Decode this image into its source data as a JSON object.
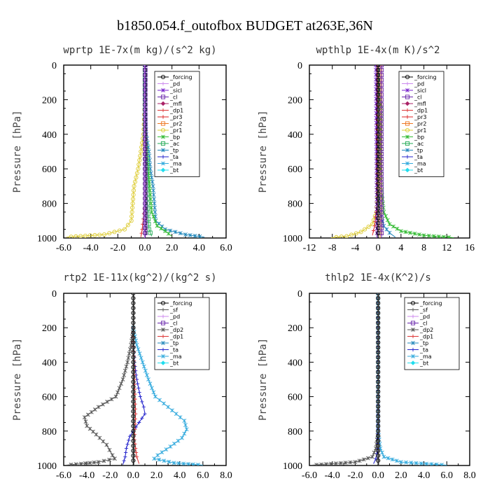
{
  "title": "b1850.054.f_outofbox  BUDGET at263E,36N",
  "colors": {
    "forcing": "#000000",
    "pd": "#cc88ee",
    "sicl": "#7722cc",
    "cl": "#6622aa",
    "mfl": "#aa2266",
    "dp1": "#dd3333",
    "pr3": "#dd2222",
    "pr2": "#ee7722",
    "pr1": "#ddcc33",
    "bp": "#33bb33",
    "ac": "#22aa55",
    "tp": "#2288bb",
    "ta": "#2222cc",
    "ma": "#33aadd",
    "bt": "#22ddee"
  },
  "chart_data": [
    {
      "type": "line",
      "title": "wprtp  1E-7x(m kg)/(s^2 kg)",
      "ylabel": "Pressure [hPa]",
      "xlim": [
        -6,
        6
      ],
      "ylim": [
        1000,
        0
      ],
      "xticks": [
        "-6.0",
        "-4.0",
        "-2.0",
        "0.0",
        "2.0",
        "4.0",
        "6.0"
      ],
      "xtick_values": [
        -6,
        -4,
        -2,
        0,
        2,
        4,
        6
      ],
      "yticks": [
        "0",
        "200",
        "400",
        "600",
        "800",
        "1000"
      ],
      "ytick_values": [
        0,
        200,
        400,
        600,
        800,
        1000
      ],
      "legend": [
        "_forcing",
        "_pd",
        "_sicl",
        "_cl",
        "_mfl",
        "_dp1",
        "_pr3",
        "_pr2",
        "_pr1",
        "_bp",
        "_ac",
        "_tp",
        "_ta",
        "_ma",
        "_bt"
      ],
      "legend_keys": [
        "forcing",
        "pd",
        "sicl",
        "cl",
        "mfl",
        "dp1",
        "pr3",
        "pr2",
        "pr1",
        "bp",
        "ac",
        "tp",
        "ta",
        "ma",
        "bt"
      ],
      "series": [
        {
          "key": "pr1",
          "points": [
            [
              0,
              0
            ],
            [
              0,
              200
            ],
            [
              -0.1,
              400
            ],
            [
              -0.3,
              500
            ],
            [
              -0.5,
              600
            ],
            [
              -0.8,
              700
            ],
            [
              -0.9,
              800
            ],
            [
              -1.0,
              900
            ],
            [
              -1.5,
              950
            ],
            [
              -3.0,
              980
            ],
            [
              -5.8,
              995
            ]
          ]
        },
        {
          "key": "tp",
          "points": [
            [
              0,
              0
            ],
            [
              0,
              200
            ],
            [
              0.1,
              400
            ],
            [
              0.3,
              500
            ],
            [
              0.4,
              600
            ],
            [
              0.6,
              700
            ],
            [
              0.7,
              800
            ],
            [
              0.8,
              900
            ],
            [
              1.5,
              950
            ],
            [
              3.0,
              980
            ],
            [
              4.4,
              995
            ]
          ]
        },
        {
          "key": "bp",
          "points": [
            [
              0,
              0
            ],
            [
              0,
              300
            ],
            [
              0.1,
              450
            ],
            [
              0.2,
              550
            ],
            [
              0.3,
              650
            ],
            [
              0.4,
              750
            ],
            [
              0.5,
              850
            ],
            [
              0.9,
              930
            ],
            [
              1.5,
              960
            ],
            [
              2.0,
              990
            ]
          ]
        },
        {
          "key": "ac",
          "points": [
            [
              0,
              0
            ],
            [
              0,
              400
            ],
            [
              0.1,
              600
            ],
            [
              0.2,
              800
            ],
            [
              0.3,
              950
            ],
            [
              0.5,
              990
            ]
          ]
        },
        {
          "key": "dp1",
          "points": [
            [
              0,
              0
            ],
            [
              0,
              800
            ],
            [
              -0.2,
              950
            ],
            [
              -0.3,
              995
            ]
          ]
        },
        {
          "key": "forcing",
          "points": [
            [
              0,
              0
            ],
            [
              0,
              1000
            ]
          ]
        },
        {
          "key": "pd",
          "points": [
            [
              -0.03,
              0
            ],
            [
              -0.03,
              1000
            ]
          ]
        },
        {
          "key": "cl",
          "points": [
            [
              0.03,
              0
            ],
            [
              0.03,
              1000
            ]
          ]
        }
      ]
    },
    {
      "type": "line",
      "title": "wpthlp  1E-4x(m K)/s^2",
      "ylabel": "Pressure [hPa]",
      "xlim": [
        -12,
        16
      ],
      "ylim": [
        1000,
        0
      ],
      "xticks": [
        "-12",
        "-8",
        "-4",
        "0",
        "4",
        "8",
        "12",
        "16"
      ],
      "xtick_values": [
        -12,
        -8,
        -4,
        0,
        4,
        8,
        12,
        16
      ],
      "yticks": [
        "0",
        "200",
        "400",
        "600",
        "800",
        "1000"
      ],
      "ytick_values": [
        0,
        200,
        400,
        600,
        800,
        1000
      ],
      "legend": [
        "_forcing",
        "_pd",
        "_sicl",
        "_cl",
        "_mfl",
        "_dp1",
        "_pr3",
        "_pr2",
        "_pr1",
        "_bp",
        "_ac",
        "_tp",
        "_ta",
        "_ma",
        "_bt"
      ],
      "legend_keys": [
        "forcing",
        "pd",
        "sicl",
        "cl",
        "mfl",
        "dp1",
        "pr3",
        "pr2",
        "pr1",
        "bp",
        "ac",
        "tp",
        "ta",
        "ma",
        "bt"
      ],
      "series": [
        {
          "key": "bp",
          "points": [
            [
              0,
              0
            ],
            [
              0.3,
              200
            ],
            [
              0.6,
              250
            ],
            [
              0.5,
              400
            ],
            [
              0.5,
              600
            ],
            [
              0.7,
              750
            ],
            [
              1.0,
              850
            ],
            [
              2.0,
              920
            ],
            [
              4.0,
              960
            ],
            [
              8.0,
              985
            ],
            [
              13.2,
              998
            ]
          ]
        },
        {
          "key": "pr1",
          "points": [
            [
              0,
              0
            ],
            [
              0,
              700
            ],
            [
              -0.3,
              850
            ],
            [
              -1.0,
              920
            ],
            [
              -3.0,
              965
            ],
            [
              -5.5,
              990
            ],
            [
              -8.2,
              998
            ]
          ]
        },
        {
          "key": "tp",
          "points": [
            [
              0,
              0
            ],
            [
              0,
              700
            ],
            [
              0.3,
              850
            ],
            [
              1.0,
              930
            ],
            [
              2.0,
              970
            ],
            [
              3.0,
              995
            ]
          ]
        },
        {
          "key": "dp1",
          "points": [
            [
              -0.2,
              0
            ],
            [
              -0.2,
              800
            ],
            [
              -0.6,
              930
            ],
            [
              -1.0,
              985
            ]
          ]
        },
        {
          "key": "sicl",
          "points": [
            [
              -0.4,
              0
            ],
            [
              -0.3,
              500
            ],
            [
              -0.2,
              1000
            ]
          ]
        },
        {
          "key": "pr2",
          "points": [
            [
              0.35,
              0
            ],
            [
              0.35,
              1000
            ]
          ]
        },
        {
          "key": "cl",
          "points": [
            [
              0.6,
              0
            ],
            [
              0.6,
              1000
            ]
          ]
        },
        {
          "key": "forcing",
          "points": [
            [
              0,
              0
            ],
            [
              0,
              1000
            ]
          ]
        }
      ]
    },
    {
      "type": "line",
      "title": "rtp2  1E-11x(kg^2)/(kg^2 s)",
      "ylabel": "Pressure [hPa]",
      "xlim": [
        -6,
        8
      ],
      "ylim": [
        1000,
        0
      ],
      "xticks": [
        "-6.0",
        "-4.0",
        "-2.0",
        "0.0",
        "2.0",
        "4.0",
        "6.0",
        "8.0"
      ],
      "xtick_values": [
        -6,
        -4,
        -2,
        0,
        2,
        4,
        6,
        8
      ],
      "yticks": [
        "0",
        "200",
        "400",
        "600",
        "800",
        "1000"
      ],
      "ytick_values": [
        0,
        200,
        400,
        600,
        800,
        1000
      ],
      "legend": [
        "_forcing",
        "_sf",
        "_pd",
        "_cl",
        "_dp2",
        "_dp1",
        "_tp",
        "_ta",
        "_ma",
        "_bt"
      ],
      "legend_keys": [
        "forcing",
        "sf",
        "pd",
        "cl",
        "dp2",
        "dp1",
        "tp",
        "ta",
        "ma",
        "bt"
      ],
      "series": [
        {
          "key": "dp2",
          "points": [
            [
              0,
              200
            ],
            [
              -0.2,
              300
            ],
            [
              -0.5,
              400
            ],
            [
              -0.9,
              500
            ],
            [
              -1.5,
              600
            ],
            [
              -3.0,
              660
            ],
            [
              -4.2,
              720
            ],
            [
              -4.0,
              770
            ],
            [
              -3.2,
              820
            ],
            [
              -2.3,
              880
            ],
            [
              -1.8,
              940
            ],
            [
              -1.6,
              960
            ],
            [
              -3.0,
              980
            ],
            [
              -4.5,
              990
            ],
            [
              -5.8,
              998
            ]
          ]
        },
        {
          "key": "ma",
          "points": [
            [
              0,
              200
            ],
            [
              0.3,
              300
            ],
            [
              0.8,
              400
            ],
            [
              1.3,
              500
            ],
            [
              1.9,
              600
            ],
            [
              3.0,
              660
            ],
            [
              4.4,
              740
            ],
            [
              4.6,
              790
            ],
            [
              4.2,
              840
            ],
            [
              3.2,
              890
            ],
            [
              2.1,
              940
            ],
            [
              1.8,
              960
            ],
            [
              3.5,
              985
            ],
            [
              6.0,
              998
            ]
          ]
        },
        {
          "key": "ta",
          "points": [
            [
              0,
              200
            ],
            [
              0.1,
              400
            ],
            [
              0.3,
              500
            ],
            [
              0.6,
              600
            ],
            [
              0.9,
              660
            ],
            [
              1.0,
              700
            ],
            [
              0.5,
              750
            ],
            [
              -0.3,
              830
            ],
            [
              -0.6,
              900
            ],
            [
              -0.7,
              950
            ],
            [
              -0.9,
              995
            ]
          ]
        },
        {
          "key": "dp1",
          "points": [
            [
              0,
              200
            ],
            [
              0.1,
              500
            ],
            [
              0.2,
              700
            ],
            [
              0.1,
              850
            ],
            [
              0.3,
              950
            ],
            [
              0.5,
              990
            ]
          ]
        },
        {
          "key": "forcing",
          "points": [
            [
              0,
              0
            ],
            [
              0,
              1000
            ]
          ]
        },
        {
          "key": "sf",
          "points": [
            [
              0.05,
              0
            ],
            [
              0.05,
              1000
            ]
          ]
        }
      ]
    },
    {
      "type": "line",
      "title": "thlp2  1E-4x(K^2)/s",
      "ylabel": "Pressure [hPa]",
      "xlim": [
        -6,
        8
      ],
      "ylim": [
        1000,
        0
      ],
      "xticks": [
        "-6.0",
        "-4.0",
        "-2.0",
        "0.0",
        "2.0",
        "4.0",
        "6.0",
        "8.0"
      ],
      "xtick_values": [
        -6,
        -4,
        -2,
        0,
        2,
        4,
        6,
        8
      ],
      "yticks": [
        "0",
        "200",
        "400",
        "600",
        "800",
        "1000"
      ],
      "ytick_values": [
        0,
        200,
        400,
        600,
        800,
        1000
      ],
      "legend": [
        "_forcing",
        "_sf",
        "_pd",
        "_cl",
        "_dp2",
        "_dp1",
        "_tp",
        "_ta",
        "_ma",
        "_bt"
      ],
      "legend_keys": [
        "forcing",
        "sf",
        "pd",
        "cl",
        "dp2",
        "dp1",
        "tp",
        "ta",
        "ma",
        "bt"
      ],
      "series": [
        {
          "key": "dp2",
          "points": [
            [
              0,
              0
            ],
            [
              0,
              800
            ],
            [
              -0.2,
              900
            ],
            [
              -0.5,
              950
            ],
            [
              -2.0,
              980
            ],
            [
              -5.8,
              998
            ]
          ]
        },
        {
          "key": "ma",
          "points": [
            [
              0,
              0
            ],
            [
              0,
              800
            ],
            [
              0.2,
              900
            ],
            [
              0.5,
              950
            ],
            [
              2.0,
              980
            ],
            [
              6.0,
              998
            ]
          ]
        },
        {
          "key": "ta",
          "points": [
            [
              0,
              0
            ],
            [
              0,
              900
            ],
            [
              -0.2,
              960
            ],
            [
              -0.4,
              990
            ]
          ]
        },
        {
          "key": "forcing",
          "points": [
            [
              0,
              0
            ],
            [
              0,
              1000
            ]
          ]
        },
        {
          "key": "sf",
          "points": [
            [
              0.05,
              0
            ],
            [
              0.05,
              1000
            ]
          ]
        }
      ]
    }
  ]
}
